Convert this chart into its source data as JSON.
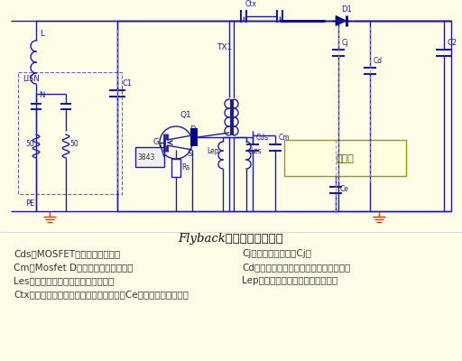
{
  "bg_color": "#FFFDE7",
  "circuit_color": "#1a1aaa",
  "dark_blue": "#00008B",
  "heatsink_fill": "#FFFFF0",
  "heatsink_edge": "#8B8B00",
  "ground_color": "#cc4400",
  "dashed_color": "#5555bb",
  "title": "Flyback架构高频等效模型",
  "title_fontsize": 9.5,
  "annotation_fontsize": 7.5,
  "ann_color": "#333333",
  "annotations_left": [
    "Cds：MOSFET的寄生等效电容，",
    "Cm：Mosfet D极对散热片杂散电容，",
    "Les：变压器副边对其他绕组的漏感，",
    "Ctx：变压器原边与副边之间的杂散电容，Ce：散热片对地的电容"
  ],
  "annotations_right": [
    "Cj：二极管的节电容Cj，",
    "Cd：输出二极管负极对散热片的杂散电容",
    "Lep：变压器原边对其他绕组的漏感",
    ""
  ]
}
